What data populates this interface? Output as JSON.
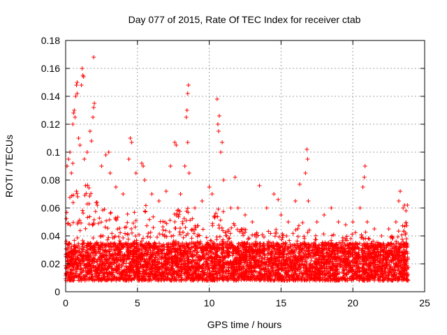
{
  "chart_data": {
    "type": "scatter",
    "title": "Day 077 of 2015, Rate Of TEC Index for receiver ctab",
    "xlabel": "GPS time / hours",
    "ylabel": "ROTI / TECUs",
    "xlim": [
      0,
      25
    ],
    "ylim": [
      0,
      0.18
    ],
    "x_ticks": [
      0,
      5,
      10,
      15,
      20,
      25
    ],
    "x_tick_labels": [
      "0",
      "5",
      "10",
      "15",
      "20",
      "25"
    ],
    "y_ticks": [
      0,
      0.02,
      0.04,
      0.06,
      0.08,
      0.1,
      0.12,
      0.14,
      0.16,
      0.18
    ],
    "y_tick_labels": [
      "0",
      "0.02",
      "0.04",
      "0.06",
      "0.08",
      "0.1",
      "0.12",
      "0.14",
      "0.16",
      "0.18"
    ],
    "grid": true,
    "marker": "plus",
    "point_color": "#ff0000",
    "x_range_of_data": [
      0,
      23.85
    ],
    "baseline_band": [
      0.008,
      0.035
    ],
    "points": [
      [
        0.1,
        0.09
      ],
      [
        0.2,
        0.095
      ],
      [
        0.3,
        0.1
      ],
      [
        0.4,
        0.085
      ],
      [
        0.5,
        0.092
      ],
      [
        0.5,
        0.12
      ],
      [
        0.55,
        0.128
      ],
      [
        0.6,
        0.13
      ],
      [
        0.65,
        0.125
      ],
      [
        0.7,
        0.14
      ],
      [
        0.75,
        0.148
      ],
      [
        0.8,
        0.15
      ],
      [
        0.8,
        0.142
      ],
      [
        0.9,
        0.11
      ],
      [
        1.0,
        0.105
      ],
      [
        1.1,
        0.148
      ],
      [
        1.15,
        0.16
      ],
      [
        1.2,
        0.155
      ],
      [
        1.25,
        0.154
      ],
      [
        1.3,
        0.095
      ],
      [
        1.5,
        0.1
      ],
      [
        1.7,
        0.115
      ],
      [
        1.8,
        0.108
      ],
      [
        1.9,
        0.125
      ],
      [
        1.95,
        0.132
      ],
      [
        2.0,
        0.135
      ],
      [
        1.95,
        0.168
      ],
      [
        2.5,
        0.09
      ],
      [
        2.8,
        0.098
      ],
      [
        3.0,
        0.1
      ],
      [
        3.1,
        0.085
      ],
      [
        3.5,
        0.075
      ],
      [
        4.0,
        0.07
      ],
      [
        4.4,
        0.095
      ],
      [
        4.5,
        0.11
      ],
      [
        4.6,
        0.107
      ],
      [
        4.9,
        0.085
      ],
      [
        5.3,
        0.092
      ],
      [
        5.4,
        0.09
      ],
      [
        5.5,
        0.08
      ],
      [
        6.0,
        0.07
      ],
      [
        6.5,
        0.065
      ],
      [
        7.0,
        0.072
      ],
      [
        7.3,
        0.09
      ],
      [
        7.6,
        0.107
      ],
      [
        7.7,
        0.105
      ],
      [
        8.0,
        0.07
      ],
      [
        8.3,
        0.09
      ],
      [
        8.4,
        0.125
      ],
      [
        8.45,
        0.13
      ],
      [
        8.5,
        0.142
      ],
      [
        8.55,
        0.148
      ],
      [
        8.5,
        0.107
      ],
      [
        8.6,
        0.085
      ],
      [
        9.0,
        0.06
      ],
      [
        9.5,
        0.065
      ],
      [
        10.0,
        0.075
      ],
      [
        10.2,
        0.07
      ],
      [
        10.55,
        0.138
      ],
      [
        10.6,
        0.12
      ],
      [
        10.65,
        0.115
      ],
      [
        10.7,
        0.126
      ],
      [
        10.8,
        0.1
      ],
      [
        10.9,
        0.107
      ],
      [
        11.0,
        0.08
      ],
      [
        11.5,
        0.06
      ],
      [
        11.8,
        0.082
      ],
      [
        12.0,
        0.06
      ],
      [
        12.5,
        0.055
      ],
      [
        13.0,
        0.05
      ],
      [
        13.5,
        0.076
      ],
      [
        14.0,
        0.06
      ],
      [
        14.5,
        0.07
      ],
      [
        14.8,
        0.066
      ],
      [
        15.0,
        0.055
      ],
      [
        15.5,
        0.05
      ],
      [
        16.0,
        0.065
      ],
      [
        16.3,
        0.077
      ],
      [
        16.7,
        0.085
      ],
      [
        16.8,
        0.102
      ],
      [
        16.85,
        0.095
      ],
      [
        16.9,
        0.065
      ],
      [
        17.5,
        0.05
      ],
      [
        18.0,
        0.055
      ],
      [
        18.5,
        0.06
      ],
      [
        19.0,
        0.05
      ],
      [
        19.5,
        0.048
      ],
      [
        20.0,
        0.05
      ],
      [
        20.5,
        0.06
      ],
      [
        20.7,
        0.075
      ],
      [
        20.8,
        0.082
      ],
      [
        20.85,
        0.09
      ],
      [
        21.0,
        0.05
      ],
      [
        21.5,
        0.045
      ],
      [
        22.0,
        0.04
      ],
      [
        22.5,
        0.045
      ],
      [
        23.0,
        0.05
      ],
      [
        23.2,
        0.065
      ],
      [
        23.3,
        0.072
      ],
      [
        23.5,
        0.06
      ],
      [
        23.6,
        0.062
      ],
      [
        23.7,
        0.058
      ],
      [
        23.8,
        0.062
      ]
    ],
    "envelope": [
      [
        0,
        0.06
      ],
      [
        0.5,
        0.075
      ],
      [
        1.0,
        0.08
      ],
      [
        1.5,
        0.078
      ],
      [
        2.0,
        0.075
      ],
      [
        2.5,
        0.06
      ],
      [
        3.0,
        0.058
      ],
      [
        3.5,
        0.055
      ],
      [
        4.0,
        0.052
      ],
      [
        4.5,
        0.058
      ],
      [
        5.0,
        0.062
      ],
      [
        5.5,
        0.065
      ],
      [
        6.0,
        0.055
      ],
      [
        6.5,
        0.05
      ],
      [
        7.0,
        0.052
      ],
      [
        7.5,
        0.058
      ],
      [
        8.0,
        0.06
      ],
      [
        8.5,
        0.062
      ],
      [
        9.0,
        0.05
      ],
      [
        9.5,
        0.045
      ],
      [
        10.0,
        0.048
      ],
      [
        10.5,
        0.06
      ],
      [
        11.0,
        0.058
      ],
      [
        11.5,
        0.05
      ],
      [
        12.0,
        0.048
      ],
      [
        12.5,
        0.045
      ],
      [
        13.0,
        0.042
      ],
      [
        13.5,
        0.045
      ],
      [
        14.0,
        0.045
      ],
      [
        14.5,
        0.048
      ],
      [
        15.0,
        0.042
      ],
      [
        15.5,
        0.04
      ],
      [
        16.0,
        0.045
      ],
      [
        16.5,
        0.05
      ],
      [
        17.0,
        0.045
      ],
      [
        17.5,
        0.04
      ],
      [
        18.0,
        0.042
      ],
      [
        18.5,
        0.042
      ],
      [
        19.0,
        0.04
      ],
      [
        19.5,
        0.04
      ],
      [
        20.0,
        0.045
      ],
      [
        20.5,
        0.045
      ],
      [
        21.0,
        0.042
      ],
      [
        21.5,
        0.04
      ],
      [
        22.0,
        0.035
      ],
      [
        22.5,
        0.04
      ],
      [
        23.0,
        0.045
      ],
      [
        23.5,
        0.05
      ],
      [
        23.85,
        0.052
      ]
    ]
  }
}
